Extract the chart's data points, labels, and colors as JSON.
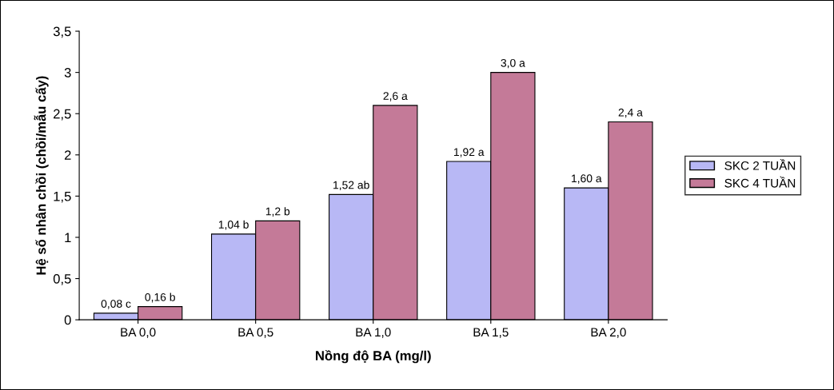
{
  "chart_data": {
    "type": "bar",
    "xlabel": "Nồng độ BA (mg/l)",
    "ylabel": "Hệ số nhân chồi (chồi/mẫu cấy)",
    "categories": [
      "BA 0,0",
      "BA 0,5",
      "BA 1,0",
      "BA 1,5",
      "BA 2,0"
    ],
    "series": [
      {
        "name": "SKC 2 TUẦN",
        "color": "#b8b8f5",
        "values": [
          0.08,
          1.04,
          1.52,
          1.92,
          1.6
        ],
        "value_labels": [
          "0,08 c",
          "1,04 b",
          "1,52 ab",
          "1,92 a",
          "1,60 a"
        ]
      },
      {
        "name": "SKC 4 TUẦN",
        "color": "#c47a98",
        "values": [
          0.16,
          1.2,
          2.6,
          3.0,
          2.4
        ],
        "value_labels": [
          "0,16 b",
          "1,2 b",
          "2,6 a",
          "3,0 a",
          "2,4 a"
        ]
      }
    ],
    "ylim": [
      0,
      3.5
    ],
    "yticks": [
      0,
      {
        "value": 0.5,
        "label": "0,5"
      },
      1,
      {
        "value": 1.5,
        "label": "1,5"
      },
      2,
      {
        "value": 2.5,
        "label": "2,5"
      },
      3,
      {
        "value": 3.5,
        "label": "3,5"
      }
    ],
    "grid": false,
    "legend": "right"
  }
}
